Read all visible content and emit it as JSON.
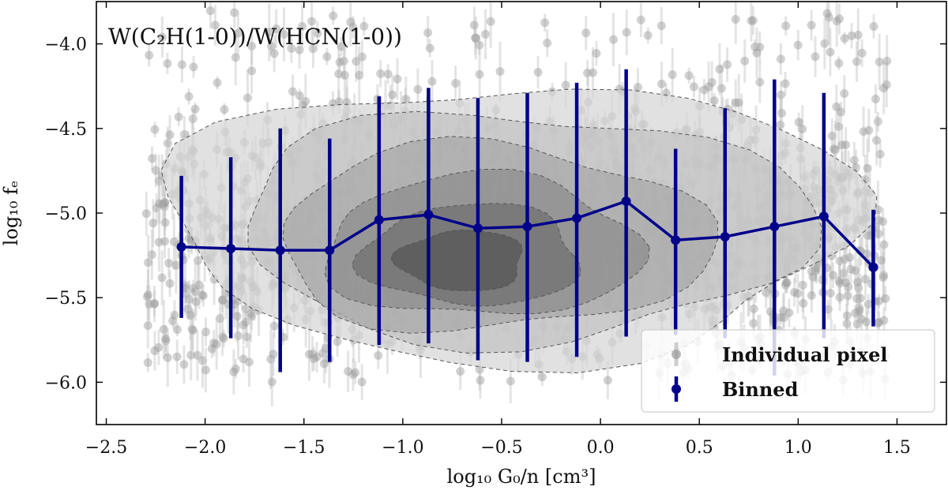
{
  "chart_data": {
    "type": "scatter",
    "title": "W(C₂H(1-0))/W(HCN(1-0))",
    "xlabel": "log₁₀ G₀/n [cm³]",
    "ylabel": "log₁₀ fₑ",
    "xlim": [
      -2.55,
      1.75
    ],
    "ylim": [
      -6.25,
      -3.75
    ],
    "xticks": [
      -2.5,
      -2.0,
      -1.5,
      -1.0,
      -0.5,
      0.0,
      0.5,
      1.0,
      1.5
    ],
    "xtick_labels": [
      "−2.5",
      "−2.0",
      "−1.5",
      "−1.0",
      "−0.5",
      "0.0",
      "0.5",
      "1.0",
      "1.5"
    ],
    "yticks": [
      -6.0,
      -5.5,
      -5.0,
      -4.5,
      -4.0
    ],
    "ytick_labels": [
      "−6.0",
      "−5.5",
      "−5.0",
      "−4.5",
      "−4.0"
    ],
    "series": [
      {
        "name": "Binned",
        "color": "#00008b",
        "x": [
          -2.12,
          -1.87,
          -1.62,
          -1.37,
          -1.12,
          -0.87,
          -0.62,
          -0.37,
          -0.12,
          0.13,
          0.38,
          0.63,
          0.88,
          1.13,
          1.38
        ],
        "y": [
          -5.2,
          -5.21,
          -5.22,
          -5.22,
          -5.04,
          -5.01,
          -5.09,
          -5.08,
          -5.03,
          -4.93,
          -5.16,
          -5.14,
          -5.08,
          -5.02,
          -5.32
        ],
        "yerr_low": [
          -5.62,
          -5.74,
          -5.94,
          -5.88,
          -5.78,
          -5.77,
          -5.87,
          -5.88,
          -5.85,
          -5.73,
          -5.72,
          -5.74,
          -5.96,
          -5.74,
          -5.67
        ],
        "yerr_high": [
          -4.78,
          -4.67,
          -4.5,
          -4.56,
          -4.31,
          -4.26,
          -4.32,
          -4.29,
          -4.23,
          -4.15,
          -4.62,
          -4.38,
          -4.21,
          -4.29,
          -4.98
        ]
      }
    ],
    "background_scatter": {
      "name": "Individual pixel",
      "color": "#9a9a9a",
      "x_range": [
        -2.3,
        1.45
      ],
      "y_range": [
        -6.0,
        -3.8
      ]
    },
    "density_contours": {
      "colors": [
        "#d6d6d6",
        "#c2c2c2",
        "#a8a8a8",
        "#8c8c8c",
        "#6f6f6f",
        "#545454"
      ],
      "levels": 6
    },
    "legend": {
      "position": "lower-right",
      "entries": [
        "Individual pixel",
        "Binned"
      ]
    }
  }
}
